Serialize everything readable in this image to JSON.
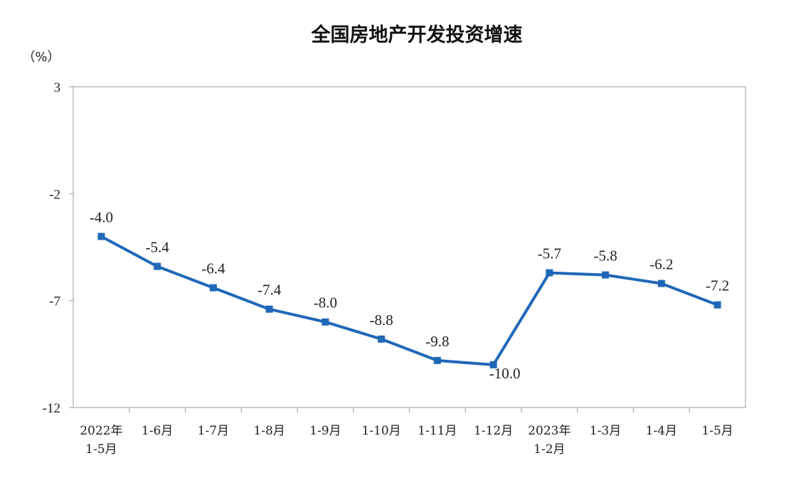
{
  "chart_data": {
    "type": "line",
    "title": "全国房地产开发投资增速",
    "ylabel": "（%）",
    "xlabel": "",
    "ylim": [
      -12,
      3
    ],
    "yticks": [
      "3",
      "-2",
      "-7",
      "-12"
    ],
    "yticks_values": [
      3,
      -2,
      -7,
      -12
    ],
    "grid": false,
    "categories": [
      [
        "2022年",
        "1-5月"
      ],
      [
        "1-6月"
      ],
      [
        "1-7月"
      ],
      [
        "1-8月"
      ],
      [
        "1-9月"
      ],
      [
        "1-10月"
      ],
      [
        "1-11月"
      ],
      [
        "1-12月"
      ],
      [
        "2023年",
        "1-2月"
      ],
      [
        "1-3月"
      ],
      [
        "1-4月"
      ],
      [
        "1-5月"
      ]
    ],
    "series": [
      {
        "values": [
          -4.0,
          -5.4,
          -6.4,
          -7.4,
          -8.0,
          -8.8,
          -9.8,
          -10.0,
          -5.7,
          -5.8,
          -6.2,
          -7.2
        ],
        "labels": [
          "-4.0",
          "-5.4",
          "-6.4",
          "-7.4",
          "-8.0",
          "-8.8",
          "-9.8",
          "-10.0",
          "-5.7",
          "-5.8",
          "-6.2",
          "-7.2"
        ],
        "color": "#1f68b8"
      }
    ]
  }
}
